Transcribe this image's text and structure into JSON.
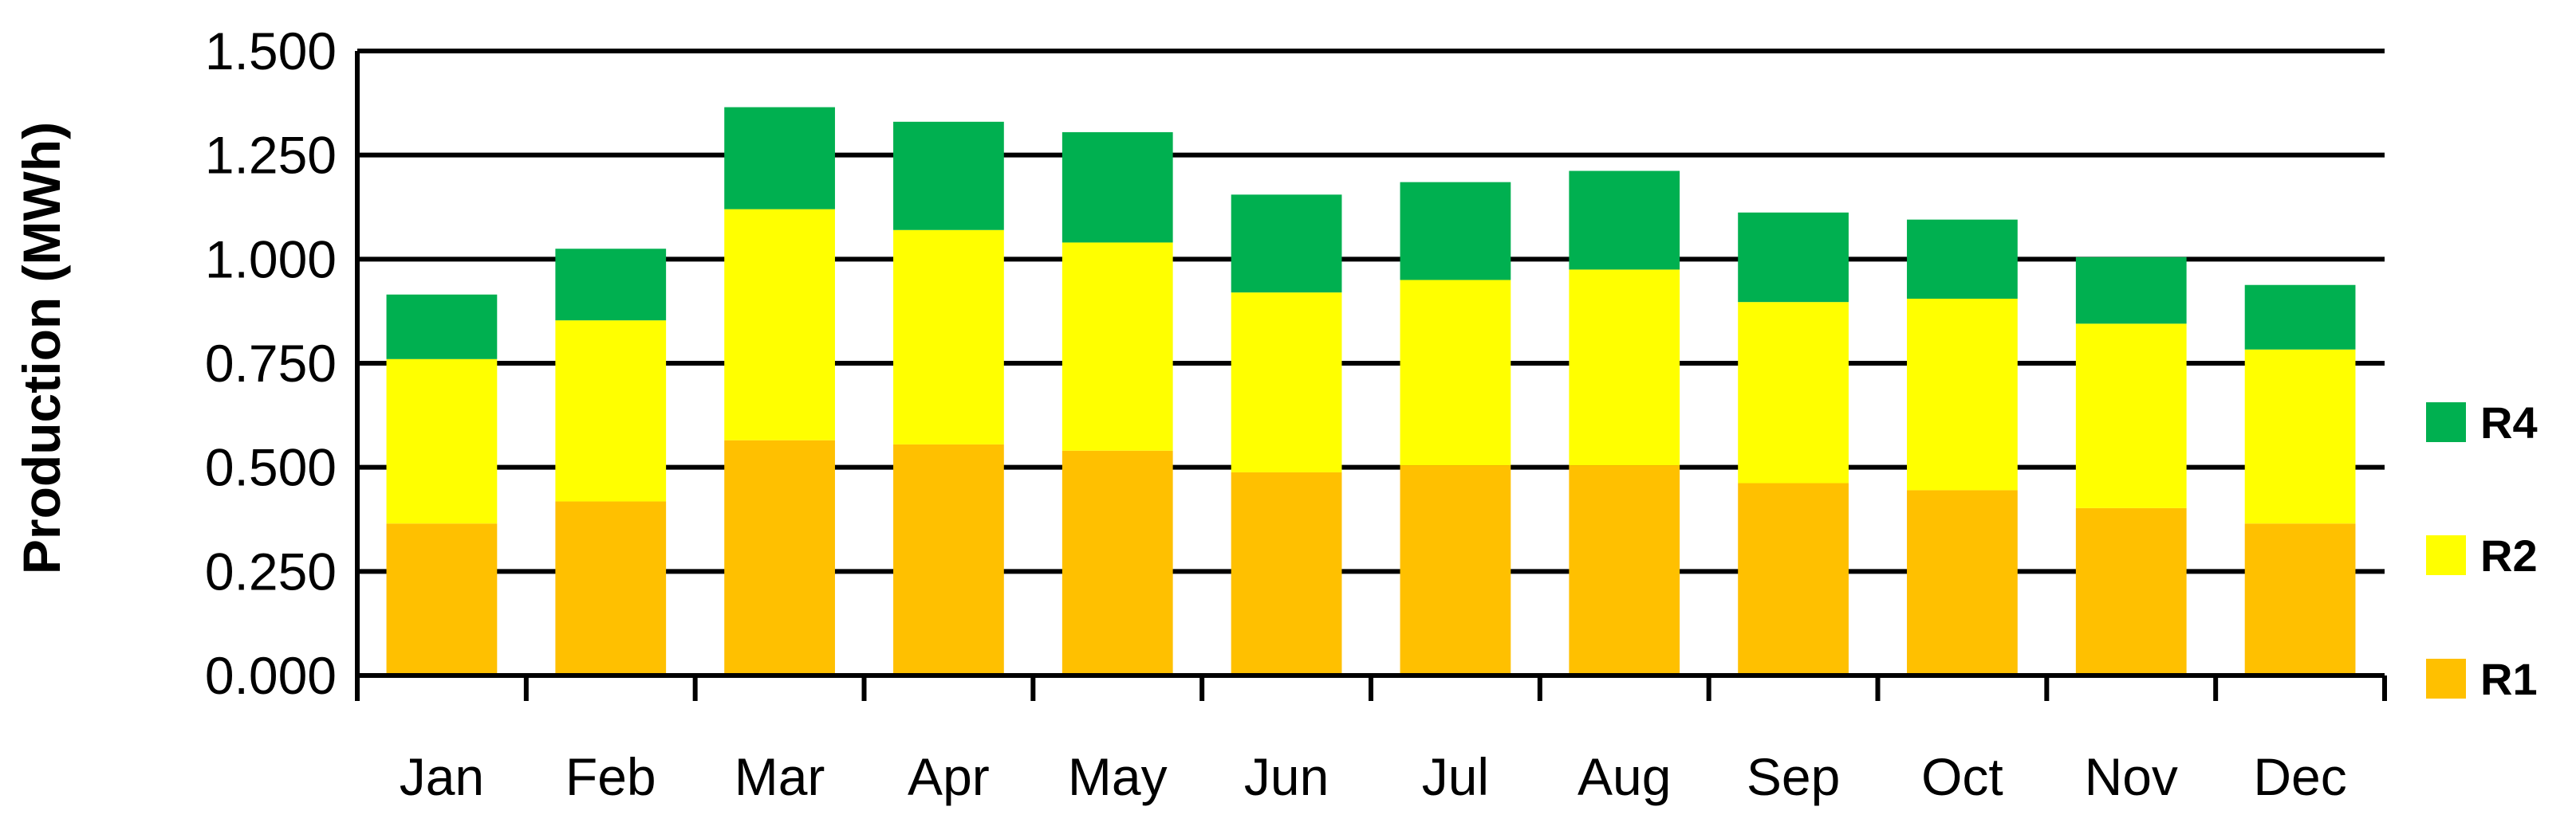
{
  "chart_data": {
    "type": "bar",
    "stacked": true,
    "title": "",
    "xlabel": "",
    "ylabel": "Production (MWh)",
    "categories": [
      "Jan",
      "Feb",
      "Mar",
      "Apr",
      "May",
      "Jun",
      "Jul",
      "Aug",
      "Sep",
      "Oct",
      "Nov",
      "Dec"
    ],
    "y_ticks": [
      "0.000",
      "0.250",
      "0.500",
      "0.750",
      "1.000",
      "1.250",
      "1.500"
    ],
    "ylim": [
      0,
      1.5
    ],
    "grid": true,
    "legend_position": "right",
    "series": [
      {
        "name": "R1",
        "color": "#FFC000",
        "values": [
          0.365,
          0.418,
          0.565,
          0.555,
          0.54,
          0.488,
          0.505,
          0.505,
          0.462,
          0.445,
          0.402,
          0.365
        ]
      },
      {
        "name": "R2",
        "color": "#FFFF00",
        "values": [
          0.395,
          0.435,
          0.555,
          0.515,
          0.5,
          0.432,
          0.445,
          0.47,
          0.435,
          0.46,
          0.443,
          0.418
        ]
      },
      {
        "name": "R4",
        "color": "#00B050",
        "values": [
          0.155,
          0.172,
          0.245,
          0.26,
          0.265,
          0.235,
          0.235,
          0.237,
          0.215,
          0.19,
          0.16,
          0.155
        ]
      }
    ],
    "legend_order": [
      "R4",
      "R2",
      "R1"
    ]
  }
}
